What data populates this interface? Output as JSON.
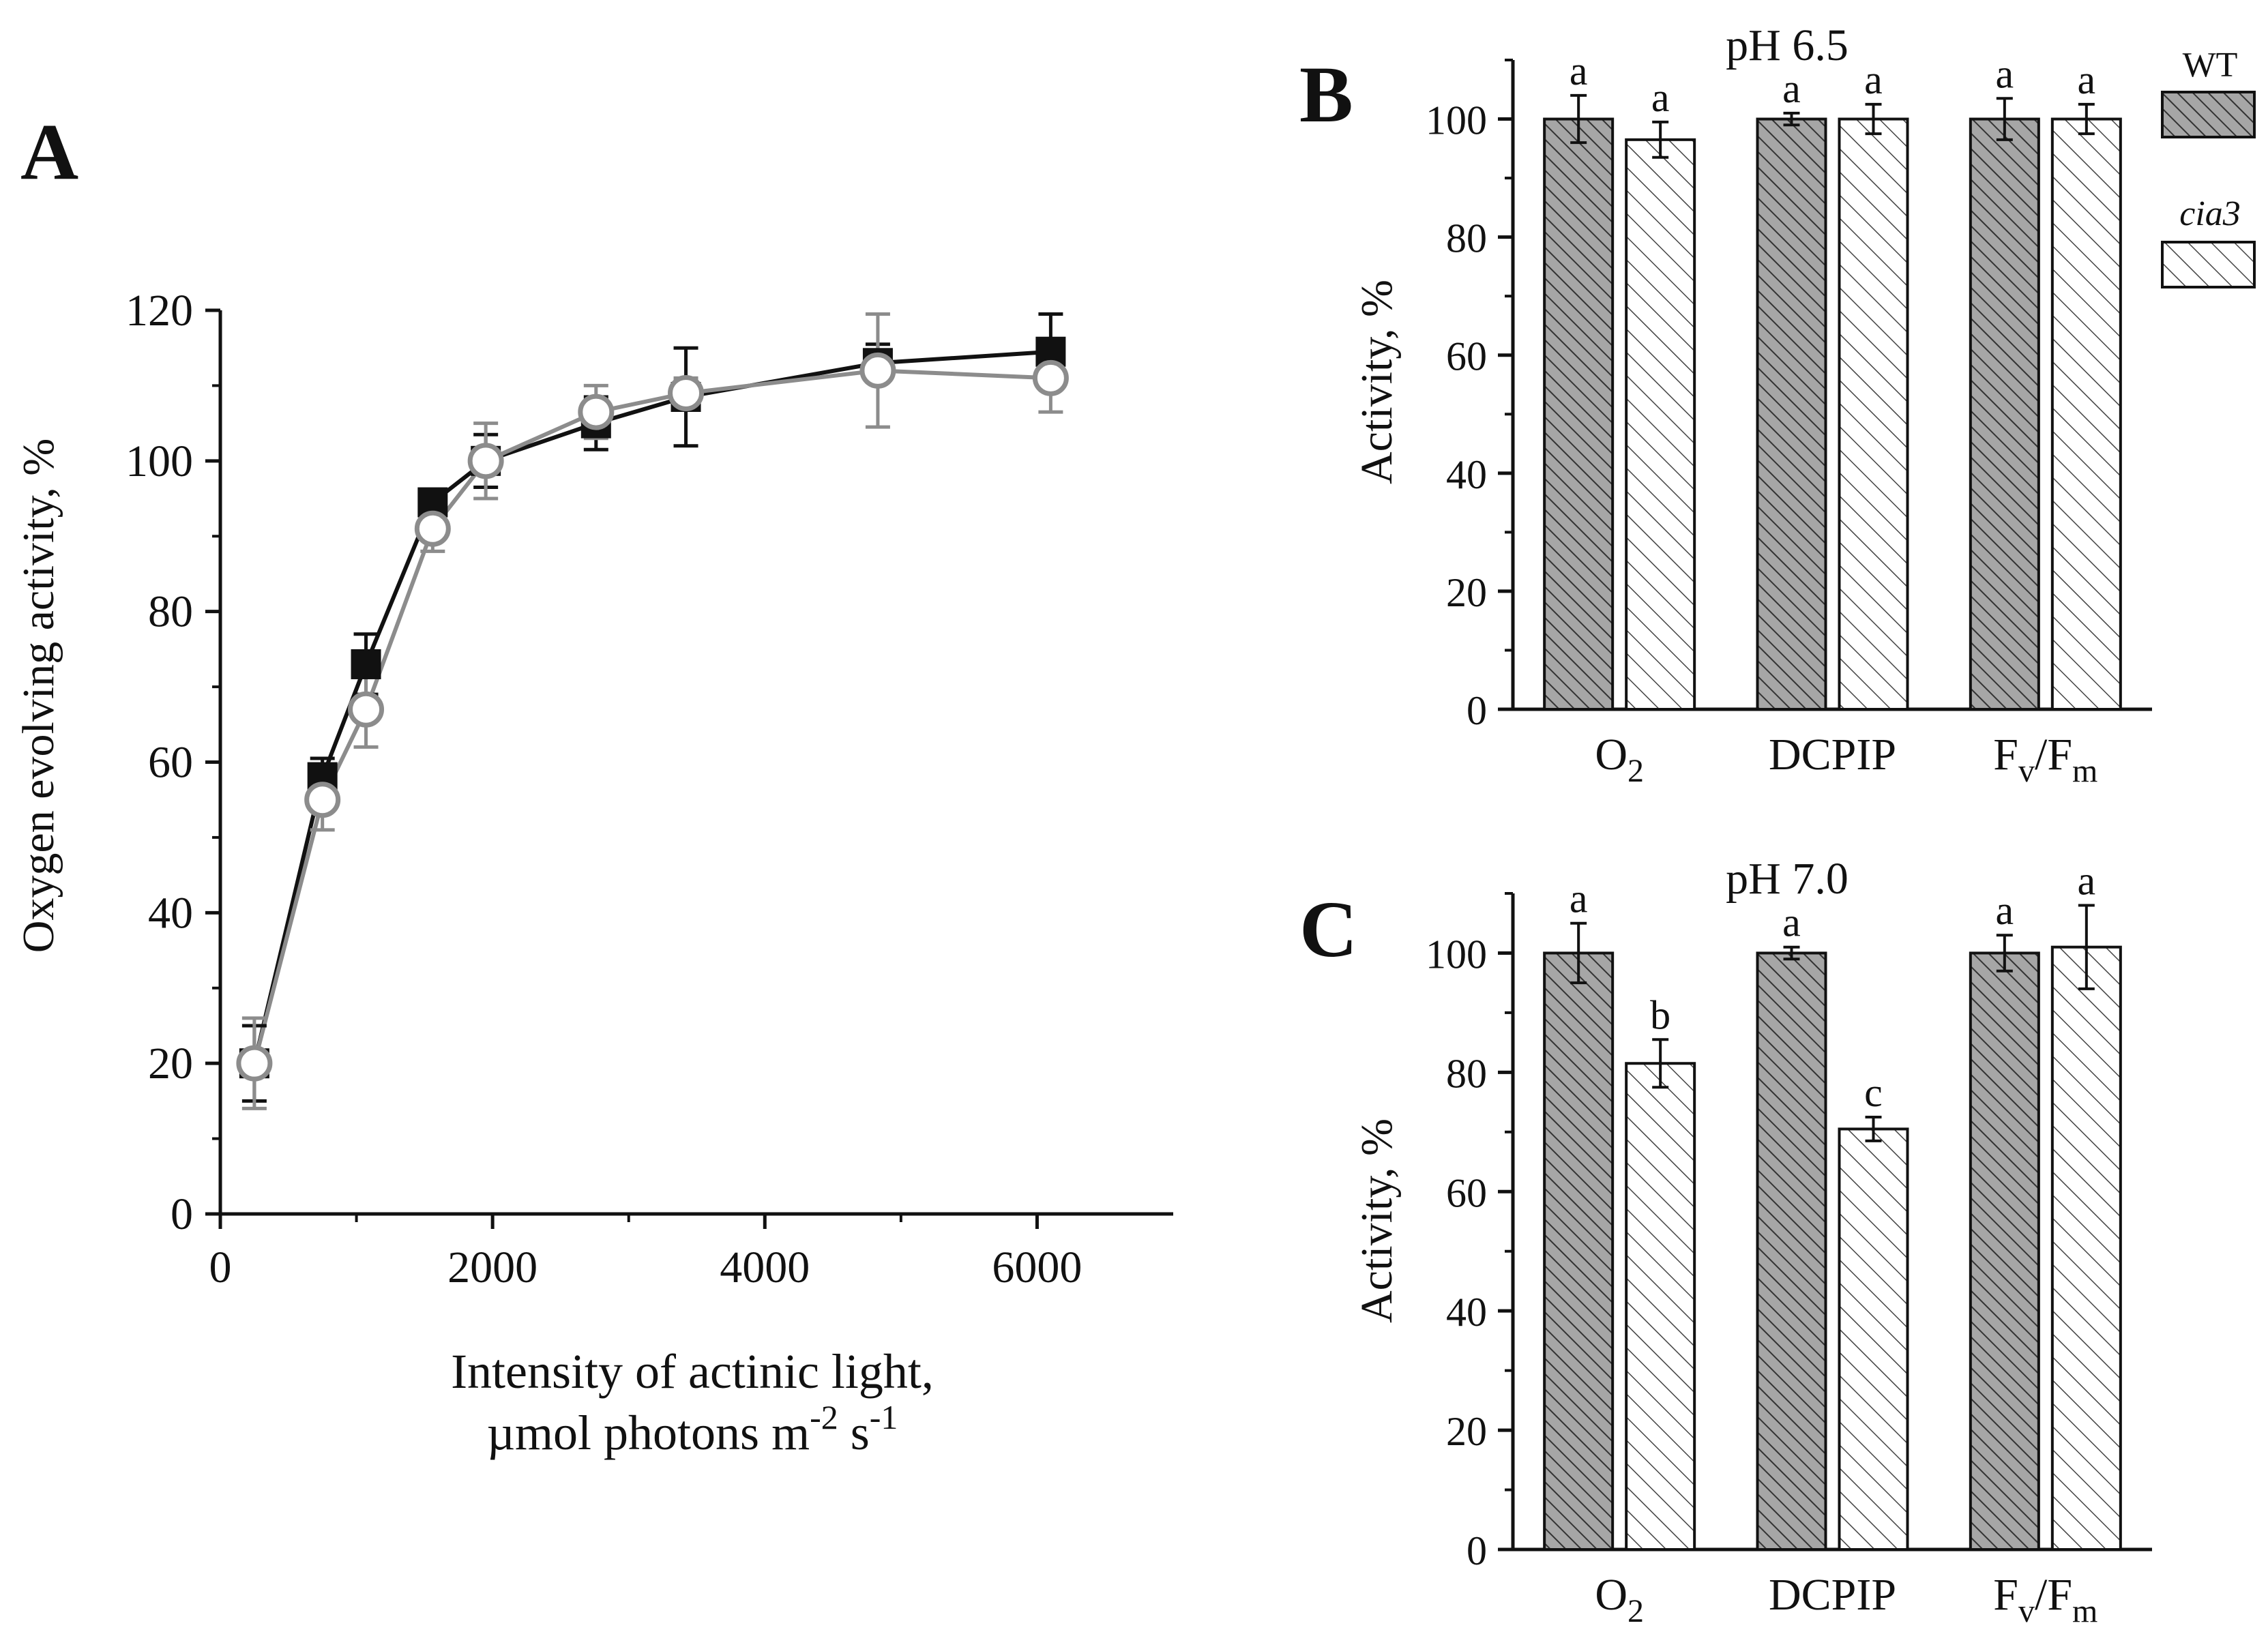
{
  "colors": {
    "wt_fill": "#a6a6a6",
    "wt_point": "#111111",
    "cia3_line": "#8c8c8c",
    "axis": "#111111"
  },
  "chart_data": [
    {
      "panel": "A",
      "type": "line",
      "ylabel": "Oxygen evolving activity, %",
      "xlabel_line1": "Intensity of actinic light,",
      "xlabel_line2_prefix": "µmol photons m",
      "xlabel_sup1": "-2",
      "xlabel_mid": " s",
      "xlabel_sup2": "-1",
      "xlim": [
        0,
        7000
      ],
      "ylim": [
        0,
        120
      ],
      "xticks": [
        "0",
        "2000",
        "4000",
        "6000"
      ],
      "yticks": [
        "0",
        "20",
        "40",
        "60",
        "80",
        "100",
        "120"
      ],
      "series": [
        {
          "name": "WT",
          "marker": "filled-square",
          "x": [
            250,
            750,
            1070,
            1560,
            1950,
            2760,
            3420,
            4830,
            6100
          ],
          "y": [
            20,
            58,
            73,
            94.5,
            100,
            105,
            108.5,
            113,
            114.5
          ],
          "err": [
            5,
            2.5,
            4,
            1.5,
            3.5,
            3.5,
            6.5,
            2.5,
            5
          ]
        },
        {
          "name": "cia3",
          "marker": "open-circle",
          "x": [
            250,
            750,
            1070,
            1560,
            1950,
            2760,
            3420,
            4830,
            6100
          ],
          "y": [
            20,
            55,
            67,
            91,
            100,
            106.5,
            109,
            112,
            111
          ],
          "err": [
            6,
            4,
            5,
            3,
            5,
            3.5,
            2,
            7.5,
            4.5
          ]
        }
      ]
    },
    {
      "panel": "B",
      "type": "bar",
      "title": "pH 6.5",
      "ylabel": "Activity, %",
      "ylim": [
        0,
        110
      ],
      "yticks": [
        "0",
        "20",
        "40",
        "60",
        "80",
        "100"
      ],
      "categories": [
        {
          "main": "O",
          "sub": "2",
          "main2": "",
          "sub2": ""
        },
        {
          "main": "DCPIP",
          "sub": "",
          "main2": "",
          "sub2": ""
        },
        {
          "main": "F",
          "sub": "v",
          "main2": "/F",
          "sub2": "m"
        }
      ],
      "series": [
        {
          "name": "WT",
          "values": [
            100,
            100,
            100
          ],
          "err": [
            4,
            1,
            3.5
          ],
          "letters": [
            "a",
            "a",
            "a"
          ]
        },
        {
          "name": "cia3",
          "values": [
            96.5,
            100,
            100
          ],
          "err": [
            3,
            2.5,
            2.5
          ],
          "letters": [
            "a",
            "a",
            "a"
          ]
        }
      ]
    },
    {
      "panel": "C",
      "type": "bar",
      "title": "pH 7.0",
      "ylabel": "Activity, %",
      "ylim": [
        0,
        110
      ],
      "yticks": [
        "0",
        "20",
        "40",
        "60",
        "80",
        "100"
      ],
      "categories": [
        {
          "main": "O",
          "sub": "2",
          "main2": "",
          "sub2": ""
        },
        {
          "main": "DCPIP",
          "sub": "",
          "main2": "",
          "sub2": ""
        },
        {
          "main": "F",
          "sub": "v",
          "main2": "/F",
          "sub2": "m"
        }
      ],
      "series": [
        {
          "name": "WT",
          "values": [
            100,
            100,
            100
          ],
          "err": [
            5,
            1,
            3
          ],
          "letters": [
            "a",
            "a",
            "a"
          ]
        },
        {
          "name": "cia3",
          "values": [
            81.5,
            70.5,
            101
          ],
          "err": [
            4,
            2,
            7
          ],
          "letters": [
            "b",
            "c",
            "a"
          ]
        }
      ]
    }
  ],
  "legend": {
    "wt_label": "WT",
    "cia3_label": "cia3"
  }
}
